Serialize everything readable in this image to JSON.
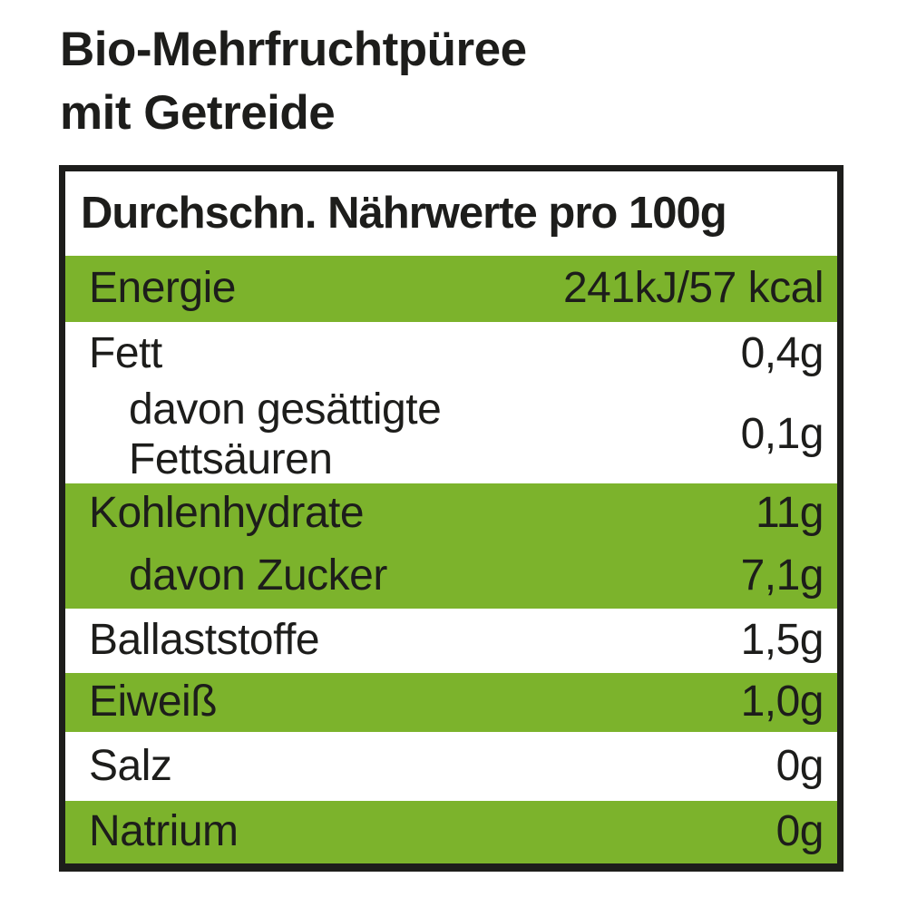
{
  "product": {
    "title_line1": "Bio-Mehrfruchtpüree",
    "title_line2": "mit Getreide"
  },
  "nutrition_table": {
    "header": "Durchschn. Nährwerte pro 100g",
    "rows": [
      {
        "label": "Energie",
        "value": "241kJ/57 kcal"
      },
      {
        "label": "Fett",
        "value": "0,4g"
      },
      {
        "label": "davon gesättigte Fettsäuren",
        "value": "0,1g"
      },
      {
        "label": "Kohlenhydrate",
        "value": "11g"
      },
      {
        "label": "davon Zucker",
        "value": "7,1g"
      },
      {
        "label": "Ballaststoffe",
        "value": "1,5g"
      },
      {
        "label": "Eiweiß",
        "value": "1,0g"
      },
      {
        "label": "Salz",
        "value": "0g"
      },
      {
        "label": "Natrium",
        "value": "0g"
      }
    ]
  },
  "colors": {
    "highlight_green": "#7CB32C",
    "text_black": "#1D1D1B",
    "bg": "#FFFFFF"
  }
}
